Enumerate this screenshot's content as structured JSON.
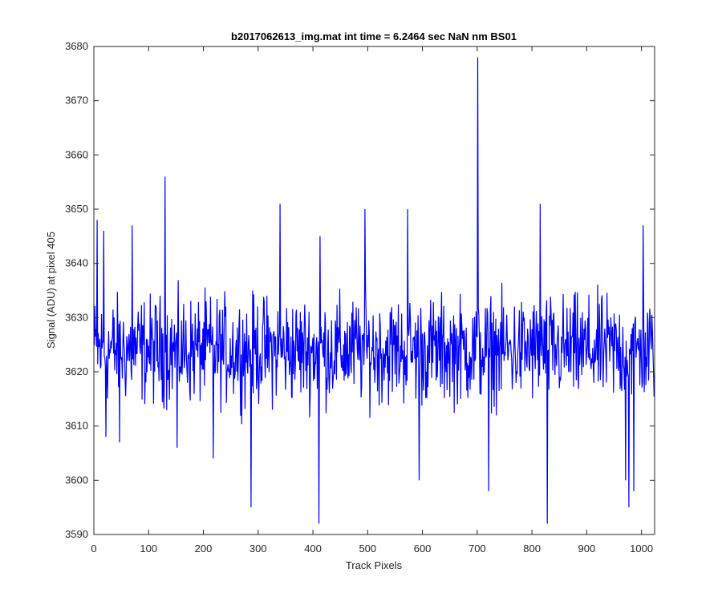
{
  "chart_data": {
    "type": "line",
    "title": "b2017062613_img.mat int time = 6.2464 sec  NaN nm BS01",
    "xlabel": "Track Pixels",
    "ylabel": "Signal (ADU) at pixel 405",
    "xlim": [
      0,
      1024
    ],
    "ylim": [
      3590,
      3680
    ],
    "xticks": [
      0,
      100,
      200,
      300,
      400,
      500,
      600,
      700,
      800,
      900,
      1000
    ],
    "yticks": [
      3590,
      3600,
      3610,
      3620,
      3630,
      3640,
      3650,
      3660,
      3670,
      3680
    ],
    "grid": false,
    "box": true,
    "series": [
      {
        "color": "#0000ff",
        "x_start": 1,
        "x_step": 1,
        "baseline": 3624,
        "noise_amplitude": 9,
        "point_count": 1024,
        "spikes": [
          {
            "x": 6,
            "y": 3648
          },
          {
            "x": 18,
            "y": 3646
          },
          {
            "x": 22,
            "y": 3608
          },
          {
            "x": 47,
            "y": 3607
          },
          {
            "x": 70,
            "y": 3647
          },
          {
            "x": 130,
            "y": 3656
          },
          {
            "x": 152,
            "y": 3606
          },
          {
            "x": 218,
            "y": 3604
          },
          {
            "x": 287,
            "y": 3595
          },
          {
            "x": 340,
            "y": 3651
          },
          {
            "x": 411,
            "y": 3592
          },
          {
            "x": 413,
            "y": 3645
          },
          {
            "x": 495,
            "y": 3650
          },
          {
            "x": 573,
            "y": 3650
          },
          {
            "x": 594,
            "y": 3600
          },
          {
            "x": 701,
            "y": 3678
          },
          {
            "x": 721,
            "y": 3598
          },
          {
            "x": 815,
            "y": 3651
          },
          {
            "x": 828,
            "y": 3592
          },
          {
            "x": 971,
            "y": 3600
          },
          {
            "x": 977,
            "y": 3595
          },
          {
            "x": 986,
            "y": 3598
          },
          {
            "x": 1003,
            "y": 3647
          }
        ]
      }
    ]
  }
}
